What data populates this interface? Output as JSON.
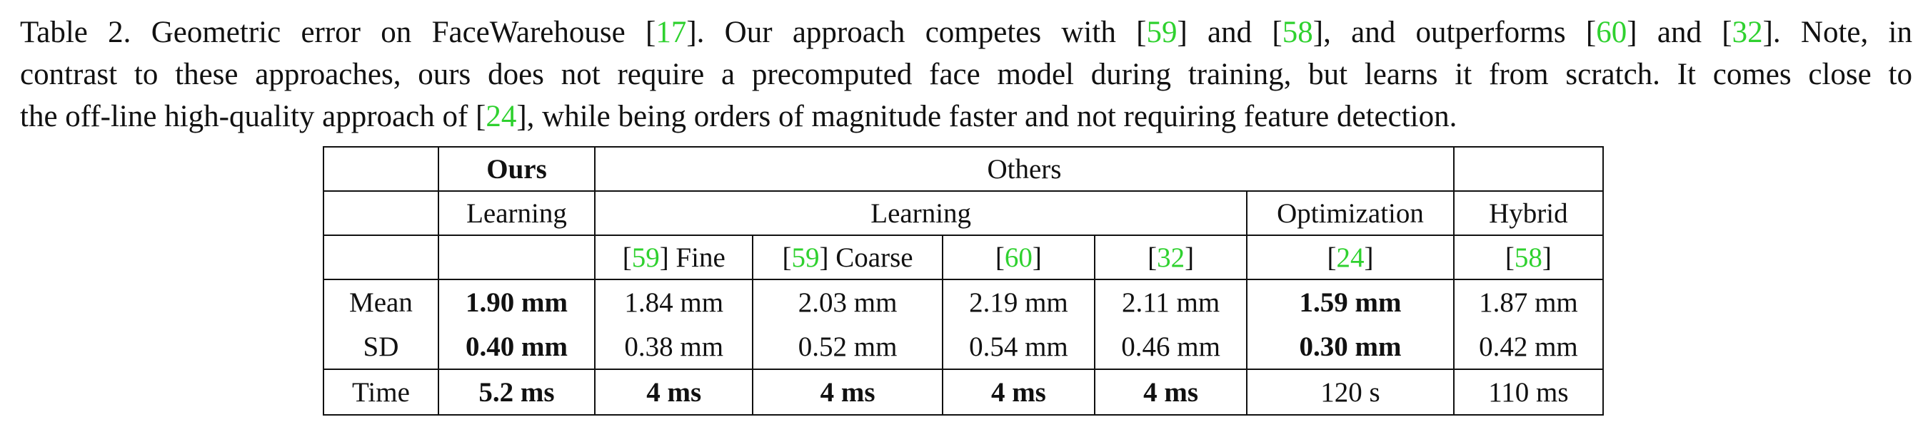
{
  "caption": {
    "line1": [
      {
        "t": "Table 2.   Geometric error on FaceWarehouse "
      },
      {
        "t": "[",
        "c": false
      },
      {
        "t": "17",
        "c": true
      },
      {
        "t": "]. Our approach competes with [",
        "c": false
      },
      {
        "t": "59",
        "c": true
      },
      {
        "t": "] and [",
        "c": false
      },
      {
        "t": "58",
        "c": true
      },
      {
        "t": "], and outperforms [",
        "c": false
      },
      {
        "t": "60",
        "c": true
      },
      {
        "t": "] and [",
        "c": false
      },
      {
        "t": "32",
        "c": true
      },
      {
        "t": "].  Note, in",
        "c": false
      }
    ],
    "line2": [
      {
        "t": "contrast to these approaches, ours does not require a precomputed face model during training, but learns it from scratch. It comes close to"
      }
    ],
    "line3": [
      {
        "t": "the off-line high-quality approach of ["
      },
      {
        "t": "24",
        "c": true
      },
      {
        "t": "], while being orders of magnitude faster and not requiring feature detection."
      }
    ]
  },
  "table": {
    "header": {
      "ours": "Ours",
      "others": "Others",
      "learning_ours": "Learning",
      "learning_others": "Learning",
      "optimization": "Optimization",
      "hybrid": "Hybrid"
    },
    "methods": [
      {
        "cite": "59",
        "suffix": " Fine"
      },
      {
        "cite": "59",
        "suffix": " Coarse"
      },
      {
        "cite": "60",
        "suffix": ""
      },
      {
        "cite": "32",
        "suffix": ""
      },
      {
        "cite": "24",
        "suffix": ""
      },
      {
        "cite": "58",
        "suffix": ""
      }
    ],
    "rows": [
      {
        "label": "Mean",
        "ours": "1.90 mm",
        "ours_bold": true,
        "values": [
          "1.84 mm",
          "2.03 mm",
          "2.19 mm",
          "2.11 mm",
          "1.59 mm",
          "1.87 mm"
        ],
        "bold": [
          false,
          false,
          false,
          false,
          true,
          false
        ]
      },
      {
        "label": "SD",
        "ours": "0.40 mm",
        "ours_bold": true,
        "values": [
          "0.38 mm",
          "0.52 mm",
          "0.54 mm",
          "0.46 mm",
          "0.30 mm",
          "0.42 mm"
        ],
        "bold": [
          false,
          false,
          false,
          false,
          true,
          false
        ]
      },
      {
        "label": "Time",
        "ours": "5.2 ms",
        "ours_bold": true,
        "values": [
          "4 ms",
          "4 ms",
          "4 ms",
          "4 ms",
          "120 s",
          "110 ms"
        ],
        "bold": [
          true,
          true,
          true,
          true,
          false,
          false
        ]
      }
    ],
    "cite_color": "#2fd12f"
  }
}
